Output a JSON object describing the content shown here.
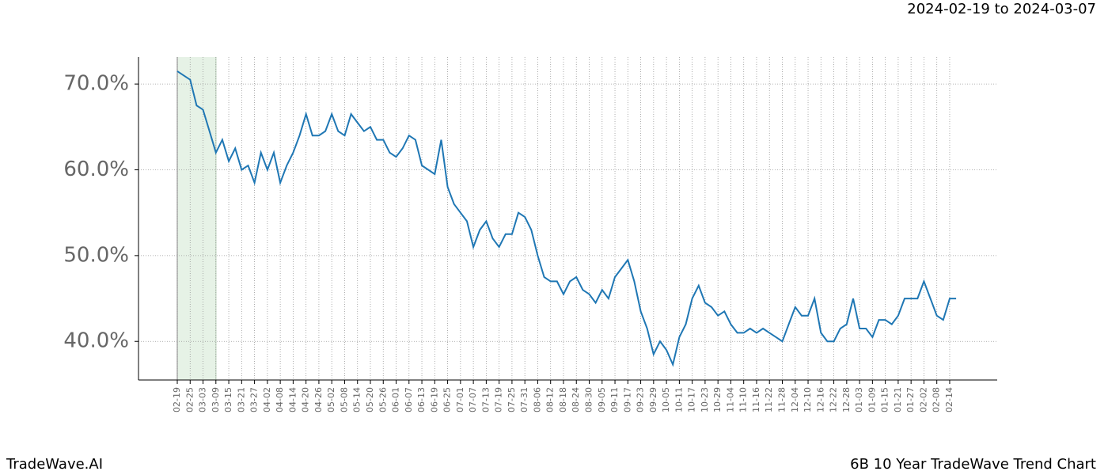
{
  "header": {
    "range": "2024-02-19 to 2024-03-07"
  },
  "footer": {
    "brand": "TradeWave.AI",
    "caption": "6B 10 Year TradeWave Trend Chart"
  },
  "chart_data": {
    "type": "line",
    "categories": [
      "02-19",
      null,
      "02-25",
      null,
      "03-03",
      null,
      "03-09",
      null,
      "03-15",
      null,
      "03-21",
      null,
      "03-27",
      null,
      "04-02",
      null,
      "04-08",
      null,
      "04-14",
      null,
      "04-20",
      null,
      "04-26",
      null,
      "05-02",
      null,
      "05-08",
      null,
      "05-14",
      null,
      "05-20",
      null,
      "05-26",
      null,
      "06-01",
      null,
      "06-07",
      null,
      "06-13",
      null,
      "06-19",
      null,
      "06-25",
      null,
      "07-01",
      null,
      "07-07",
      null,
      "07-13",
      null,
      "07-19",
      null,
      "07-25",
      null,
      "07-31",
      null,
      "08-06",
      null,
      "08-12",
      null,
      "08-18",
      null,
      "08-24",
      null,
      "08-30",
      null,
      "09-05",
      null,
      "09-11",
      null,
      "09-17",
      null,
      "09-23",
      null,
      "09-29",
      null,
      "10-05",
      null,
      "10-11",
      null,
      "10-17",
      null,
      "10-23",
      null,
      "10-29",
      null,
      "11-04",
      null,
      "11-10",
      null,
      "11-16",
      null,
      "11-22",
      null,
      "11-28",
      null,
      "12-04",
      null,
      "12-10",
      null,
      "12-16",
      null,
      "12-22",
      null,
      "12-28",
      null,
      "01-03",
      null,
      "01-09",
      null,
      "01-15",
      null,
      "01-21",
      null,
      "01-27",
      null,
      "02-02",
      null,
      "02-08",
      null,
      "02-14",
      null
    ],
    "series": [
      {
        "color": "#1f77b4",
        "values": [
          71.5,
          71,
          70.5,
          67.5,
          67,
          64.5,
          62,
          63.5,
          61,
          62.5,
          60,
          60.5,
          58.5,
          62,
          60,
          62,
          58.5,
          60.5,
          62,
          64,
          66.5,
          64,
          64,
          64.5,
          66.5,
          64.5,
          64,
          66.5,
          65.5,
          64.5,
          65,
          63.5,
          63.5,
          62,
          61.5,
          62.5,
          64,
          63.5,
          60.5,
          60,
          59.5,
          63.5,
          58,
          56,
          55,
          54,
          51,
          53,
          54,
          52,
          51,
          52.5,
          52.5,
          55,
          54.5,
          53,
          50,
          47.5,
          47,
          47,
          45.5,
          47,
          47.5,
          46,
          45.5,
          44.5,
          46,
          45,
          47.5,
          48.5,
          49.5,
          47,
          43.5,
          41.5,
          38.5,
          40,
          39,
          37.3,
          40.5,
          42,
          45,
          46.5,
          44.5,
          44,
          43,
          43.5,
          42,
          41,
          41,
          41.5,
          41,
          41.5,
          41,
          40.5,
          40,
          42,
          44,
          43,
          43,
          45,
          41,
          40,
          40,
          41.5,
          42,
          45,
          41.5,
          41.5,
          40.5,
          42.5,
          42.5,
          42,
          43,
          45,
          45,
          45,
          47,
          45,
          43,
          42.5,
          45,
          45
        ]
      }
    ],
    "highlight": {
      "from": "02-19",
      "to": "03-09",
      "color": "#d5ead5"
    },
    "ylim": [
      35.5,
      73.15
    ],
    "yticks": [
      {
        "value": 40,
        "label": "40.0%"
      },
      {
        "value": 50,
        "label": "50.0%"
      },
      {
        "value": 60,
        "label": "60.0%"
      },
      {
        "value": 70,
        "label": "70.0%"
      }
    ],
    "grid": true
  }
}
